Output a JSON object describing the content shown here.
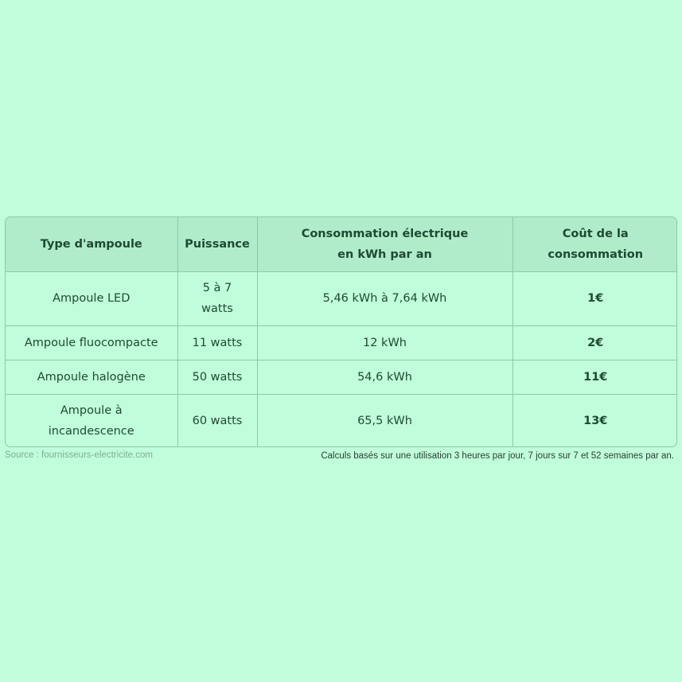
{
  "table": {
    "headers": [
      "Type d'ampoule",
      "Puissance",
      "Consommation électrique en kWh par an",
      "Coût de la consommation"
    ],
    "rows": [
      [
        "Ampoule LED",
        "5 à 7 watts",
        "5,46 kWh à 7,64 kWh",
        "1€"
      ],
      [
        "Ampoule fluocompacte",
        "11 watts",
        "12 kWh",
        "2€"
      ],
      [
        "Ampoule halogène",
        "50 watts",
        "54,6 kWh",
        "11€"
      ],
      [
        "Ampoule à incandescence",
        "60 watts",
        "65,5 kWh",
        "13€"
      ]
    ]
  },
  "source": "Source : fournisseurs-electricite.com",
  "note": "Calculs basés sur une utilisation 3 heures par jour, 7 jours sur 7 et 52 semaines par an."
}
